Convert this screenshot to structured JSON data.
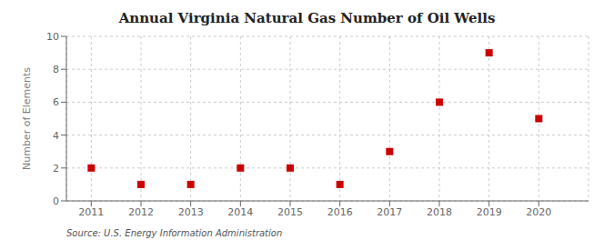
{
  "chart_data": {
    "type": "scatter",
    "title": "Annual Virginia Natural Gas Number of Oil Wells",
    "ylabel": "Number of Elements",
    "annotation": "Source: U.S. Energy Information Administration",
    "x": [
      2011,
      2012,
      2013,
      2014,
      2015,
      2016,
      2017,
      2018,
      2019,
      2020
    ],
    "values": [
      2,
      1,
      1,
      2,
      2,
      1,
      3,
      6,
      9,
      5
    ],
    "color": "#cc0000",
    "marker": "square",
    "xlim": [
      2010.5,
      2021.0
    ],
    "xticks": [
      2011,
      2012,
      2013,
      2014,
      2015,
      2016,
      2017,
      2018,
      2019,
      2020
    ],
    "ylim": [
      0,
      10
    ],
    "yticks": [
      0,
      2,
      4,
      6,
      8,
      10
    ],
    "grid": true
  }
}
